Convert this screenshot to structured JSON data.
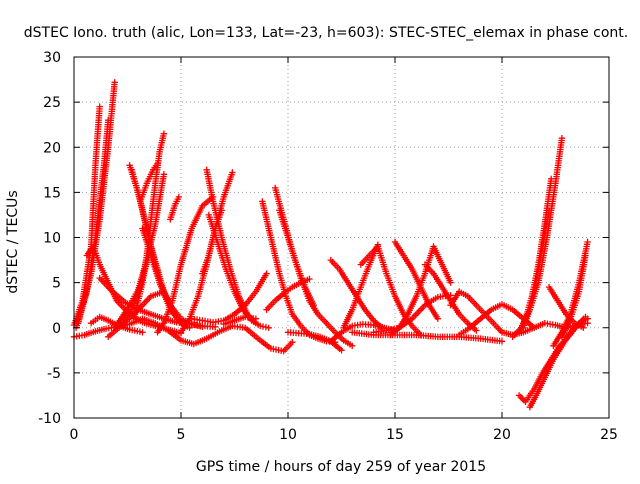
{
  "chart_data": {
    "type": "scatter",
    "title": "dSTEC Iono. truth (alic, Lon=133, Lat=-23, h=603): STEC-STEC_elemax in phase cont.",
    "xlabel": "GPS time / hours of day 259 of year 2015",
    "ylabel": "dSTEC  / TECUs",
    "xlim": [
      0,
      25
    ],
    "ylim": [
      -10,
      30
    ],
    "xticks": [
      0,
      5,
      10,
      15,
      20,
      25
    ],
    "yticks": [
      -10,
      -5,
      0,
      5,
      10,
      15,
      20,
      25,
      30
    ],
    "grid": true,
    "marker": "+",
    "color": "#ff0000",
    "series": [
      {
        "x": [
          0.0,
          0.4,
          0.8,
          1.0,
          1.2
        ],
        "y": [
          0.3,
          3.0,
          9.0,
          18.0,
          24.5
        ]
      },
      {
        "x": [
          0.1,
          0.6,
          1.0,
          1.4,
          1.6
        ],
        "y": [
          0.0,
          4.0,
          10.0,
          18.0,
          23.0
        ]
      },
      {
        "x": [
          0.2,
          0.8,
          1.2,
          1.6,
          1.9
        ],
        "y": [
          0.5,
          6.0,
          12.0,
          20.0,
          27.2
        ]
      },
      {
        "x": [
          0.0,
          0.5,
          1.0,
          1.5,
          2.0,
          2.6,
          3.2,
          3.8,
          4.4,
          5.0,
          5.6,
          6.2,
          6.8,
          7.4,
          8.0,
          8.6,
          9.2,
          9.8,
          10.2
        ],
        "y": [
          -1.0,
          -0.8,
          -0.4,
          -0.1,
          0.1,
          0.4,
          1.0,
          0.5,
          -0.3,
          -1.4,
          -1.8,
          -1.2,
          -0.4,
          0.2,
          0.0,
          -1.2,
          -2.3,
          -2.6,
          -1.6
        ]
      },
      {
        "x": [
          0.6,
          0.9,
          1.2,
          1.6,
          2.0,
          2.6,
          3.2,
          3.8,
          4.4,
          5.0
        ],
        "y": [
          8.0,
          9.0,
          7.0,
          5.0,
          3.0,
          1.5,
          0.6,
          0.2,
          -0.2,
          -0.6
        ]
      },
      {
        "x": [
          1.2,
          1.8,
          2.4,
          3.0,
          3.6,
          4.2,
          4.8,
          5.4,
          6.0,
          6.6
        ],
        "y": [
          5.5,
          4.0,
          2.8,
          2.0,
          1.5,
          1.0,
          0.6,
          0.4,
          0.2,
          0.1
        ]
      },
      {
        "x": [
          0.8,
          1.2,
          1.6,
          2.0,
          2.6,
          3.2
        ],
        "y": [
          0.5,
          1.2,
          0.8,
          0.3,
          -0.2,
          -0.5
        ]
      },
      {
        "x": [
          1.6,
          2.2,
          3.0,
          3.6,
          4.2
        ],
        "y": [
          -1.0,
          0.2,
          2.0,
          3.5,
          4.0
        ]
      },
      {
        "x": [
          1.9,
          2.2,
          2.6,
          3.0,
          3.4,
          3.8,
          4.2
        ],
        "y": [
          0.0,
          1.0,
          2.5,
          4.2,
          7.5,
          11.5,
          17.0
        ]
      },
      {
        "x": [
          2.0,
          2.3,
          2.7,
          3.1,
          3.5
        ],
        "y": [
          0.0,
          0.6,
          2.0,
          4.6,
          8.0
        ]
      },
      {
        "x": [
          2.6,
          3.0,
          3.5,
          4.0,
          4.5,
          5.0,
          5.4
        ],
        "y": [
          18.0,
          15.0,
          10.0,
          5.0,
          2.0,
          0.5,
          0.0
        ]
      },
      {
        "x": [
          2.7,
          3.1,
          3.6,
          4.2,
          4.7
        ],
        "y": [
          17.5,
          14.0,
          9.0,
          4.0,
          1.5
        ]
      },
      {
        "x": [
          3.2,
          3.6,
          4.0,
          4.5,
          5.0,
          5.5,
          6.0
        ],
        "y": [
          11.0,
          8.0,
          5.0,
          2.5,
          1.0,
          0.4,
          0.1
        ]
      },
      {
        "x": [
          3.1,
          3.4,
          3.7,
          3.9
        ],
        "y": [
          14.0,
          16.0,
          17.5,
          18.2
        ]
      },
      {
        "x": [
          4.2,
          4.0,
          3.8,
          3.6,
          3.4,
          3.2,
          3.0,
          2.8
        ],
        "y": [
          21.5,
          19.5,
          16.0,
          12.0,
          8.0,
          5.0,
          3.0,
          1.0
        ]
      },
      {
        "x": [
          3.9,
          4.2,
          4.6,
          5.0,
          5.5,
          6.0,
          6.5
        ],
        "y": [
          -0.5,
          0.5,
          3.0,
          7.0,
          11.0,
          13.5,
          14.5
        ]
      },
      {
        "x": [
          4.5,
          4.7,
          4.9
        ],
        "y": [
          12.0,
          13.5,
          14.5
        ]
      },
      {
        "x": [
          5.0,
          5.4,
          5.8,
          6.2,
          6.6,
          7.0,
          7.4
        ],
        "y": [
          -0.5,
          1.0,
          3.5,
          7.0,
          11.0,
          14.5,
          17.2
        ]
      },
      {
        "x": [
          6.2,
          6.5,
          6.9,
          7.3,
          7.7,
          8.1,
          8.5
        ],
        "y": [
          17.5,
          14.0,
          10.0,
          6.5,
          3.5,
          1.5,
          0.5
        ]
      },
      {
        "x": [
          6.3,
          6.7,
          7.1,
          7.5,
          7.9,
          8.3,
          8.7,
          9.1
        ],
        "y": [
          12.5,
          9.5,
          6.5,
          4.0,
          2.0,
          0.8,
          0.2,
          0.0
        ]
      },
      {
        "x": [
          6.0,
          6.3,
          6.6,
          6.9
        ],
        "y": [
          6.0,
          8.0,
          11.0,
          13.0
        ]
      },
      {
        "x": [
          5.5,
          6.0,
          6.5,
          7.0,
          7.5,
          8.0,
          8.5,
          9.0
        ],
        "y": [
          1.0,
          0.8,
          0.6,
          0.8,
          1.5,
          2.5,
          4.0,
          6.0
        ]
      },
      {
        "x": [
          7.0,
          7.5,
          8.0,
          8.5
        ],
        "y": [
          0.4,
          0.8,
          1.2,
          1.0
        ]
      },
      {
        "x": [
          8.8,
          9.0,
          9.3,
          9.6,
          9.9,
          10.2,
          10.6,
          11.0,
          11.4,
          11.8,
          12.2
        ],
        "y": [
          14.0,
          12.0,
          9.0,
          6.0,
          3.5,
          1.5,
          0.2,
          -0.8,
          -1.2,
          -1.5,
          -1.6
        ]
      },
      {
        "x": [
          9.4,
          9.8,
          10.2,
          10.6,
          11.0,
          11.4,
          11.8,
          12.2,
          12.6,
          13.0
        ],
        "y": [
          15.5,
          12.0,
          8.5,
          5.5,
          3.0,
          1.5,
          0.5,
          -0.5,
          -1.4,
          -2.0
        ]
      },
      {
        "x": [
          9.6,
          10.0,
          10.4,
          10.8,
          11.2
        ],
        "y": [
          13.0,
          10.0,
          7.0,
          4.5,
          2.5
        ]
      },
      {
        "x": [
          9.0,
          9.4,
          9.8,
          10.2,
          10.6,
          11.0
        ],
        "y": [
          2.0,
          3.0,
          3.8,
          4.5,
          5.0,
          5.4
        ]
      },
      {
        "x": [
          10.0,
          10.5,
          11.0,
          11.5,
          12.0,
          12.5
        ],
        "y": [
          -0.5,
          -0.6,
          -0.7,
          -1.0,
          -1.5,
          -2.5
        ]
      },
      {
        "x": [
          12.0,
          12.5,
          13.0,
          13.5,
          14.0,
          14.5,
          15.0
        ],
        "y": [
          -1.5,
          -0.5,
          0.2,
          0.4,
          0.3,
          0.0,
          -0.3
        ]
      },
      {
        "x": [
          12.0,
          12.4,
          12.8,
          13.2,
          13.6,
          14.0,
          14.4
        ],
        "y": [
          7.5,
          6.5,
          5.0,
          3.5,
          2.0,
          0.8,
          0.0
        ]
      },
      {
        "x": [
          12.6,
          13.0,
          13.4,
          13.8,
          14.2
        ],
        "y": [
          0.0,
          2.0,
          4.5,
          7.0,
          9.2
        ]
      },
      {
        "x": [
          13.4,
          13.8,
          14.2,
          14.6,
          15.0,
          15.4,
          15.8,
          16.2
        ],
        "y": [
          7.0,
          8.0,
          9.0,
          6.0,
          3.5,
          1.5,
          0.2,
          -0.8
        ]
      },
      {
        "x": [
          14.8,
          15.2,
          15.6,
          16.0,
          16.4,
          16.8,
          17.2,
          17.6
        ],
        "y": [
          -0.8,
          0.0,
          1.5,
          3.5,
          6.0,
          9.0,
          7.0,
          5.0
        ]
      },
      {
        "x": [
          15.0,
          15.4,
          15.8,
          16.2,
          16.6,
          17.0
        ],
        "y": [
          9.5,
          8.0,
          6.5,
          4.5,
          2.5,
          1.0
        ]
      },
      {
        "x": [
          16.4,
          16.8,
          17.2,
          17.6,
          18.0,
          18.4,
          18.8
        ],
        "y": [
          7.0,
          6.0,
          4.5,
          3.0,
          1.5,
          0.5,
          -0.3
        ]
      },
      {
        "x": [
          14.0,
          14.6,
          15.2,
          15.8,
          16.4,
          17.0,
          17.6
        ],
        "y": [
          -0.5,
          -0.3,
          0.0,
          1.0,
          2.5,
          3.4,
          3.6
        ]
      },
      {
        "x": [
          13.0,
          14.0,
          15.0,
          16.0,
          17.0,
          18.0,
          19.0,
          20.0
        ],
        "y": [
          -0.5,
          -0.8,
          -0.8,
          -0.8,
          -1.0,
          -1.0,
          -1.2,
          -1.5
        ]
      },
      {
        "x": [
          17.6,
          18.0,
          18.4,
          18.8,
          19.2,
          19.6,
          20.0
        ],
        "y": [
          2.5,
          4.0,
          3.5,
          2.5,
          1.5,
          0.5,
          -0.5
        ]
      },
      {
        "x": [
          18.0,
          18.5,
          19.0,
          19.5,
          20.0,
          20.5,
          21.0,
          21.5
        ],
        "y": [
          -0.8,
          0.0,
          1.0,
          2.0,
          2.6,
          2.0,
          1.0,
          0.0
        ]
      },
      {
        "x": [
          20.0,
          20.5,
          21.0,
          21.5,
          22.0,
          22.5,
          23.0,
          23.5,
          24.0
        ],
        "y": [
          -0.5,
          -0.8,
          -0.5,
          0.0,
          0.5,
          0.3,
          0.0,
          0.3,
          0.5
        ]
      },
      {
        "x": [
          20.5,
          20.9,
          21.3,
          21.7,
          22.1,
          22.5,
          22.8
        ],
        "y": [
          -1.0,
          0.0,
          2.0,
          5.0,
          10.0,
          16.0,
          21.0
        ]
      },
      {
        "x": [
          20.8,
          21.1,
          21.4,
          21.7,
          22.0,
          22.3
        ],
        "y": [
          -0.5,
          1.0,
          3.5,
          7.0,
          11.5,
          16.5
        ]
      },
      {
        "x": [
          21.0,
          21.3,
          21.6,
          21.9,
          22.2
        ],
        "y": [
          0.0,
          2.0,
          5.0,
          9.0,
          13.0
        ]
      },
      {
        "x": [
          20.8,
          21.1,
          21.5,
          21.9,
          22.3,
          22.7,
          23.1,
          23.5,
          23.9
        ],
        "y": [
          -7.5,
          -8.2,
          -6.8,
          -5.0,
          -3.5,
          -2.0,
          -1.0,
          0.2,
          1.2
        ]
      },
      {
        "x": [
          21.3,
          21.6,
          22.0,
          22.4,
          22.8,
          23.2,
          23.6,
          24.0
        ],
        "y": [
          -8.8,
          -7.5,
          -5.5,
          -3.5,
          -2.0,
          -0.5,
          0.5,
          1.0
        ]
      },
      {
        "x": [
          22.4,
          22.8,
          23.2,
          23.6,
          24.0
        ],
        "y": [
          -2.0,
          -0.5,
          1.5,
          5.0,
          9.5
        ]
      },
      {
        "x": [
          22.8,
          23.2,
          23.6,
          23.9
        ],
        "y": [
          -1.0,
          1.0,
          4.0,
          8.0
        ]
      },
      {
        "x": [
          22.2,
          22.6,
          23.0,
          23.4,
          23.8
        ],
        "y": [
          4.5,
          3.0,
          1.5,
          0.5,
          0.0
        ]
      }
    ]
  }
}
